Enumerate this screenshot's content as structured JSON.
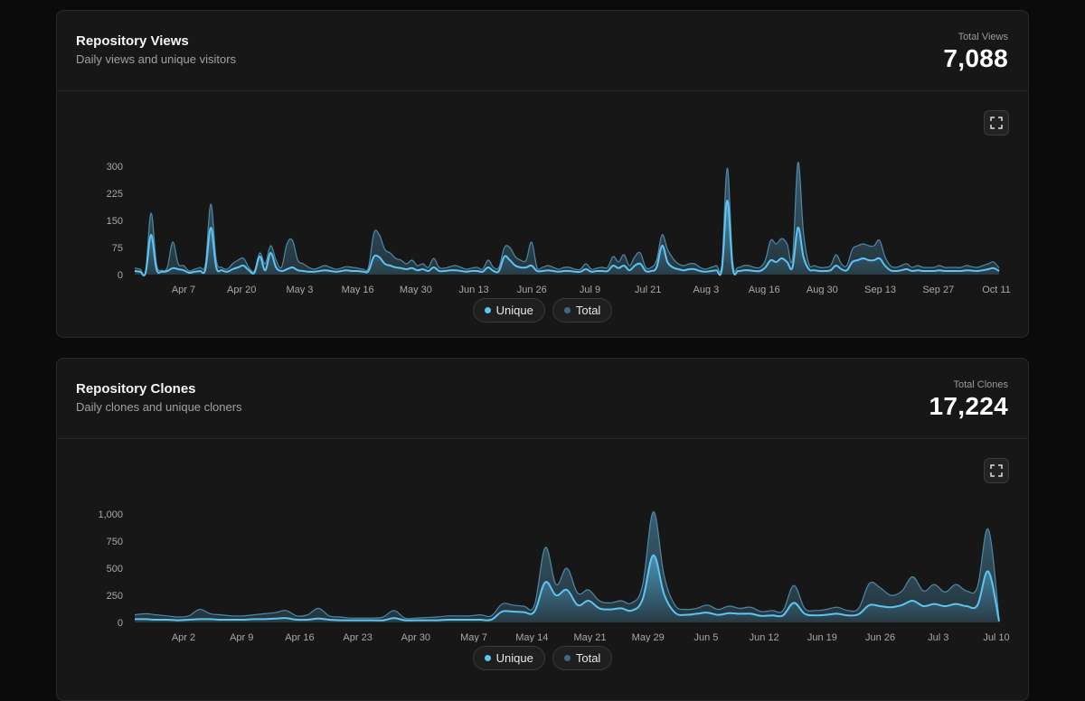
{
  "colors": {
    "unique": "#5ec4f2",
    "total": "#3d6a82",
    "background": "#171717"
  },
  "views": {
    "title": "Repository Views",
    "subtitle": "Daily views and unique visitors",
    "total_label": "Total Views",
    "total_value": "7,088",
    "legend": {
      "unique": "Unique",
      "total": "Total"
    },
    "expand_icon": "expand-icon"
  },
  "clones": {
    "title": "Repository Clones",
    "subtitle": "Daily clones and unique cloners",
    "total_label": "Total Clones",
    "total_value": "17,224",
    "legend": {
      "unique": "Unique",
      "total": "Total"
    },
    "expand_icon": "expand-icon"
  },
  "chart_data": [
    {
      "type": "area",
      "ylim": [
        0,
        300
      ],
      "yticks": [
        "300",
        "225",
        "150",
        "75",
        "0"
      ],
      "ytick_values": [
        300,
        225,
        150,
        75,
        0
      ],
      "xticks": [
        "Apr 7",
        "Apr 20",
        "May 3",
        "May 16",
        "May 30",
        "Jun 13",
        "Jun 26",
        "Jul 9",
        "Jul 21",
        "Aug 3",
        "Aug 16",
        "Aug 30",
        "Sep 13",
        "Sep 27",
        "Oct 11"
      ],
      "grid": false,
      "legend": "bottom-center",
      "series": [
        {
          "name": "Total",
          "values": [
            18,
            15,
            10,
            170,
            30,
            12,
            20,
            90,
            30,
            25,
            10,
            15,
            20,
            30,
            195,
            40,
            20,
            15,
            30,
            40,
            45,
            20,
            10,
            60,
            30,
            80,
            40,
            20,
            85,
            95,
            40,
            30,
            20,
            15,
            20,
            25,
            20,
            15,
            18,
            22,
            20,
            18,
            15,
            20,
            115,
            110,
            70,
            60,
            45,
            40,
            30,
            40,
            25,
            30,
            20,
            45,
            20,
            18,
            22,
            25,
            20,
            15,
            18,
            20,
            15,
            40,
            20,
            20,
            75,
            75,
            50,
            40,
            40,
            90,
            20,
            20,
            25,
            20,
            15,
            20,
            20,
            15,
            15,
            30,
            15,
            18,
            20,
            20,
            50,
            35,
            55,
            25,
            50,
            60,
            20,
            20,
            40,
            110,
            70,
            45,
            30,
            25,
            30,
            30,
            20,
            15,
            20,
            25,
            30,
            295,
            35,
            20,
            25,
            25,
            20,
            20,
            40,
            95,
            85,
            100,
            85,
            45,
            310,
            120,
            30,
            25,
            20,
            20,
            25,
            55,
            30,
            25,
            70,
            80,
            85,
            80,
            80,
            95,
            50,
            25,
            20,
            25,
            30,
            20,
            25,
            20,
            20,
            20,
            25,
            20,
            20,
            20,
            20,
            25,
            22,
            20,
            25,
            30,
            35,
            18
          ]
        },
        {
          "name": "Unique",
          "values": [
            10,
            8,
            5,
            110,
            15,
            8,
            10,
            18,
            15,
            12,
            5,
            8,
            10,
            15,
            130,
            20,
            12,
            8,
            15,
            20,
            25,
            12,
            5,
            50,
            12,
            60,
            20,
            10,
            15,
            20,
            12,
            10,
            8,
            8,
            10,
            12,
            10,
            8,
            10,
            12,
            10,
            10,
            8,
            10,
            50,
            48,
            30,
            25,
            20,
            18,
            15,
            18,
            12,
            15,
            10,
            20,
            10,
            10,
            12,
            12,
            10,
            8,
            10,
            10,
            8,
            20,
            10,
            10,
            50,
            40,
            25,
            20,
            20,
            25,
            10,
            10,
            12,
            10,
            8,
            10,
            10,
            8,
            8,
            15,
            8,
            10,
            10,
            10,
            25,
            18,
            25,
            12,
            25,
            30,
            10,
            10,
            20,
            80,
            35,
            20,
            15,
            12,
            15,
            15,
            10,
            8,
            10,
            12,
            15,
            205,
            18,
            10,
            12,
            12,
            10,
            10,
            20,
            40,
            35,
            45,
            35,
            20,
            130,
            50,
            15,
            12,
            10,
            10,
            12,
            25,
            15,
            12,
            35,
            40,
            45,
            40,
            40,
            45,
            25,
            12,
            10,
            12,
            15,
            10,
            12,
            10,
            10,
            10,
            12,
            10,
            10,
            10,
            10,
            12,
            11,
            10,
            12,
            15,
            18,
            10
          ]
        }
      ]
    },
    {
      "type": "area",
      "ylim": [
        0,
        1000
      ],
      "yticks": [
        "1,000",
        "750",
        "500",
        "250",
        "0"
      ],
      "ytick_values": [
        1000,
        750,
        500,
        250,
        0
      ],
      "xticks": [
        "Apr 2",
        "Apr 9",
        "Apr 16",
        "Apr 23",
        "Apr 30",
        "May 7",
        "May 14",
        "May 21",
        "May 29",
        "Jun 5",
        "Jun 12",
        "Jun 19",
        "Jun 26",
        "Jul 3",
        "Jul 10"
      ],
      "grid": false,
      "legend": "bottom-center",
      "series": [
        {
          "name": "Total",
          "values": [
            70,
            80,
            70,
            60,
            50,
            60,
            120,
            80,
            70,
            60,
            60,
            70,
            80,
            90,
            110,
            60,
            70,
            130,
            60,
            50,
            40,
            40,
            40,
            50,
            110,
            40,
            40,
            45,
            50,
            60,
            60,
            60,
            70,
            60,
            170,
            160,
            150,
            160,
            690,
            350,
            500,
            270,
            300,
            200,
            180,
            200,
            180,
            340,
            1020,
            430,
            160,
            120,
            130,
            160,
            120,
            150,
            130,
            140,
            100,
            110,
            110,
            340,
            130,
            110,
            120,
            140,
            110,
            130,
            360,
            320,
            250,
            290,
            420,
            290,
            350,
            280,
            350,
            290,
            330,
            860,
            30
          ]
        },
        {
          "name": "Unique",
          "values": [
            30,
            30,
            25,
            25,
            20,
            25,
            30,
            30,
            25,
            25,
            25,
            30,
            30,
            35,
            40,
            25,
            25,
            35,
            25,
            20,
            20,
            20,
            20,
            20,
            40,
            20,
            20,
            20,
            20,
            25,
            25,
            25,
            25,
            25,
            100,
            100,
            95,
            100,
            370,
            250,
            300,
            160,
            200,
            130,
            120,
            130,
            110,
            210,
            620,
            260,
            90,
            70,
            80,
            90,
            70,
            85,
            80,
            80,
            60,
            65,
            65,
            180,
            80,
            65,
            70,
            80,
            65,
            75,
            160,
            150,
            140,
            160,
            200,
            150,
            170,
            150,
            170,
            150,
            160,
            470,
            10
          ]
        }
      ]
    }
  ]
}
